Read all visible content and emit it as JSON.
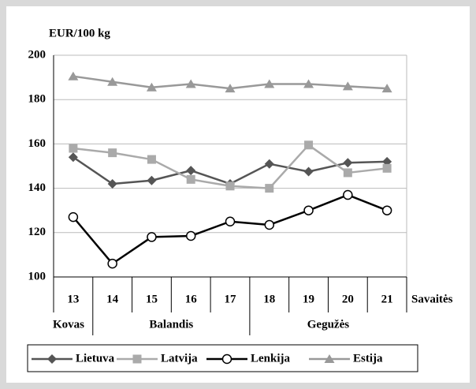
{
  "chart_data": {
    "type": "line",
    "y_label": "EUR/100 kg",
    "x_label": "Savaitės",
    "categories": [
      "13",
      "14",
      "15",
      "16",
      "17",
      "18",
      "19",
      "20",
      "21"
    ],
    "groups": [
      {
        "label": "Kovas",
        "span": 1
      },
      {
        "label": "Balandis",
        "span": 4
      },
      {
        "label": "Gegužės",
        "span": 4
      }
    ],
    "series": [
      {
        "name": "Lietuva",
        "color": "#555555",
        "marker": "diamond",
        "values": [
          154,
          142,
          143.5,
          148,
          142,
          151,
          147.5,
          151.5,
          152
        ]
      },
      {
        "name": "Latvija",
        "color": "#aaaaaa",
        "marker": "square",
        "values": [
          158,
          156,
          153,
          144,
          141,
          140,
          159.5,
          147,
          149
        ]
      },
      {
        "name": "Lenkija",
        "color": "#000000",
        "marker": "circle",
        "values": [
          127,
          106,
          118,
          118.5,
          125,
          123.5,
          130,
          137,
          130
        ]
      },
      {
        "name": "Estija",
        "color": "#999999",
        "marker": "triangle",
        "values": [
          190.5,
          188,
          185.5,
          187,
          185,
          187,
          187,
          186,
          185
        ]
      }
    ],
    "ylim": [
      100,
      200
    ],
    "yticks": [
      100,
      120,
      140,
      160,
      180,
      200
    ],
    "grid": true,
    "legend": "bottom"
  }
}
